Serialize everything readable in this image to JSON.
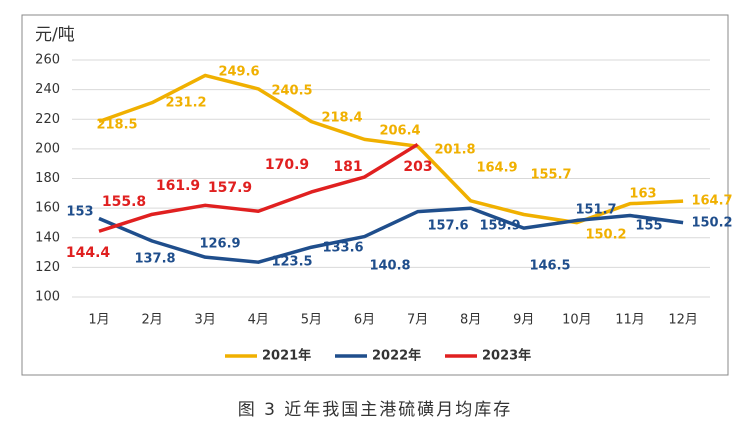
{
  "chart_data": {
    "type": "line",
    "y_label": "元/吨",
    "caption": "图 3 近年我国主港硫磺月均库存",
    "categories": [
      "1月",
      "2月",
      "3月",
      "4月",
      "5月",
      "6月",
      "7月",
      "8月",
      "9月",
      "10月",
      "11月",
      "12月"
    ],
    "series": [
      {
        "name": "2021年",
        "color": "#f0b000",
        "values": [
          218.5,
          231.2,
          249.6,
          240.5,
          218.4,
          206.4,
          201.8,
          164.9,
          155.7,
          150.2,
          163,
          164.7
        ]
      },
      {
        "name": "2022年",
        "color": "#1f4e8c",
        "values": [
          153,
          137.8,
          126.9,
          123.5,
          133.6,
          140.8,
          157.6,
          159.9,
          146.5,
          151.7,
          155,
          150.2
        ]
      },
      {
        "name": "2023年",
        "color": "#e02020",
        "values": [
          144.4,
          155.8,
          161.9,
          157.9,
          170.9,
          181,
          203,
          null,
          null,
          null,
          null,
          null
        ]
      }
    ],
    "ylim": [
      100,
      260
    ],
    "yticks": [
      100,
      120,
      140,
      160,
      180,
      200,
      220,
      240,
      260
    ],
    "grid": true,
    "legend": "bottom"
  }
}
